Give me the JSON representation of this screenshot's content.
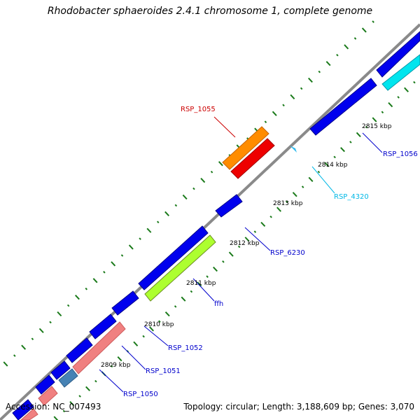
{
  "title": "Rhodobacter sphaeroides 2.4.1 chromosome 1, complete genome",
  "footer": {
    "accession": "Accession: NC_007493",
    "summary": "Topology: circular; Length: 3,188,609 bp; Genes: 3,070"
  },
  "colors": {
    "backbone": "#808080",
    "tick": "#1a7a1a",
    "blue": "#0000ee",
    "cyan": "#00e5ee",
    "orange": "#ff8c00",
    "red": "#ee0000",
    "green": "#adff2f",
    "salmon": "#f08080",
    "steelblue": "#4682b4"
  },
  "scale_labels": [
    "2809 kbp",
    "2810 kbp",
    "2811 kbp",
    "2812 kbp",
    "2813 kbp",
    "2814 kbp",
    "2815 kbp"
  ],
  "gene_labels": [
    {
      "name": "RSP_1055",
      "color": "#cc0000"
    },
    {
      "name": "RSP_1056",
      "color": "#0000cc"
    },
    {
      "name": "RSP_4320",
      "color": "#00b8e6"
    },
    {
      "name": "RSP_6230",
      "color": "#0000cc"
    },
    {
      "name": "ffh",
      "color": "#0000cc"
    },
    {
      "name": "RSP_1052",
      "color": "#0000cc"
    },
    {
      "name": "RSP_1051",
      "color": "#0000cc"
    },
    {
      "name": "RSP_1050",
      "color": "#0000cc"
    }
  ]
}
